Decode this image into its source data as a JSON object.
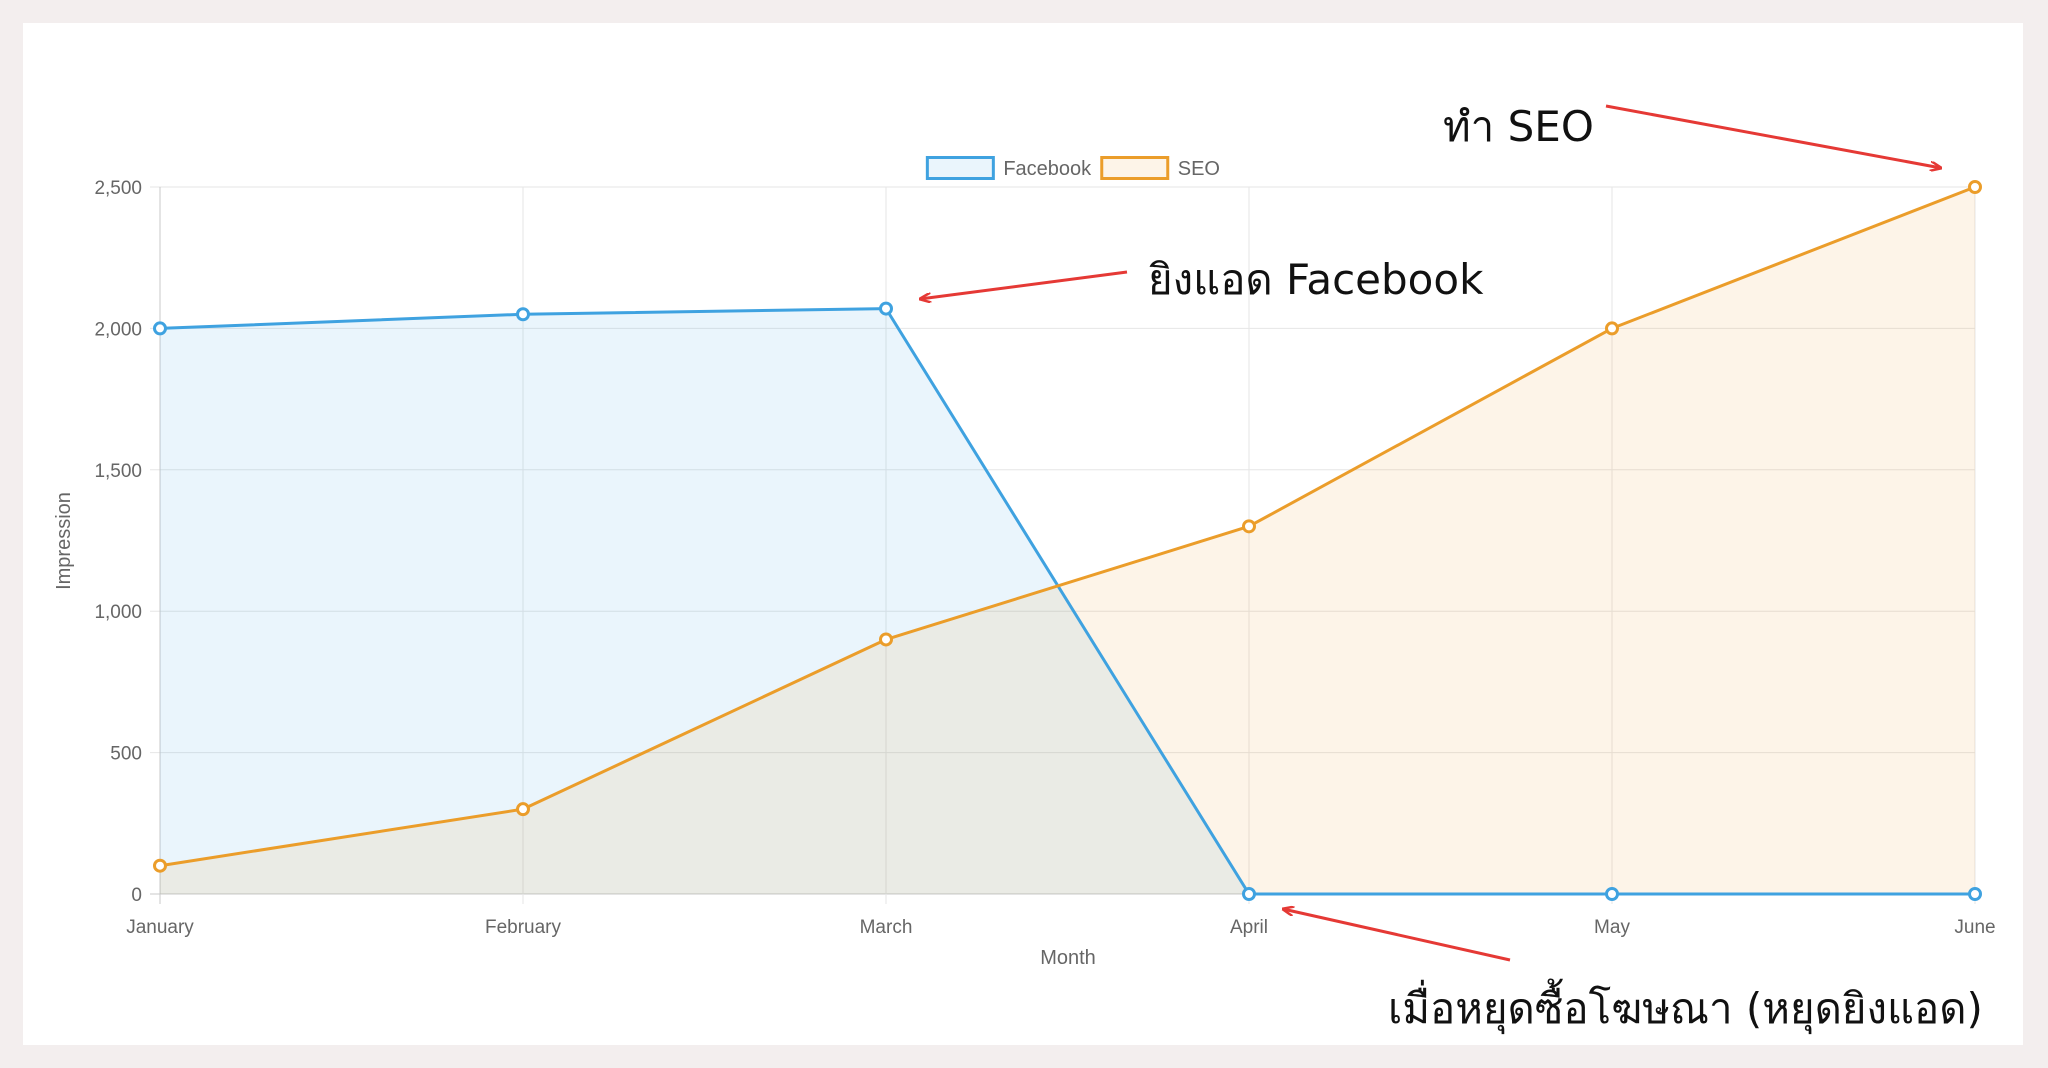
{
  "chart_data": {
    "type": "area",
    "categories": [
      "January",
      "February",
      "March",
      "April",
      "May",
      "June"
    ],
    "series": [
      {
        "name": "Facebook",
        "values": [
          2000,
          2050,
          2070,
          0,
          0,
          0
        ],
        "color": "#3fa2e0",
        "fill": "rgba(63,162,224,0.11)"
      },
      {
        "name": "SEO",
        "values": [
          100,
          300,
          900,
          1300,
          2000,
          2500
        ],
        "color": "#eb9d2a",
        "fill": "rgba(235,157,42,0.11)"
      }
    ],
    "xlabel": "Month",
    "ylabel": "Impression",
    "ylim": [
      0,
      2500
    ],
    "yticks": [
      "0",
      "500",
      "1,000",
      "1,500",
      "2,000",
      "2,500"
    ],
    "grid": true,
    "legend": "top-center"
  },
  "annotations": {
    "seo": {
      "text": "ทำ SEO",
      "color": "#e53935"
    },
    "facebook": {
      "text": "ยิงแอด Facebook",
      "color": "#e53935"
    },
    "stop_ads": {
      "text": "เมื่อหยุดซื้อโฆษณา (หยุดยิงแอด)",
      "color": "#e53935"
    }
  }
}
